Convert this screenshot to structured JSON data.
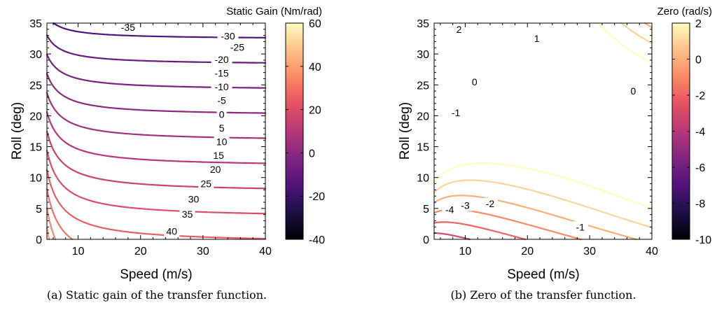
{
  "chart_data": [
    {
      "type": "contour",
      "id": "a",
      "caption": "(a) Static gain of the transfer function.",
      "xlabel": "Speed (m/s)",
      "ylabel": "Roll (deg)",
      "xlim": [
        5,
        40
      ],
      "ylim": [
        0,
        35
      ],
      "xticks": [
        "10",
        "20",
        "30",
        "40"
      ],
      "yticks": [
        "0",
        "5",
        "10",
        "15",
        "20",
        "25",
        "30",
        "35"
      ],
      "colorbar": {
        "label": "Static Gain (Nm/rad)",
        "min": -40,
        "max": 60,
        "ticks": [
          "-40",
          "-20",
          "0",
          "20",
          "40",
          "60"
        ]
      },
      "levels": [
        -35,
        -30,
        -25,
        -20,
        -15,
        -10,
        -5,
        0,
        5,
        10,
        15,
        20,
        25,
        30,
        35,
        40,
        45,
        50,
        55
      ],
      "labeled_levels": [
        "-35",
        "-30",
        "-25",
        "-20",
        "-15",
        "-10",
        "-5",
        "0",
        "5",
        "10",
        "15",
        "20",
        "25",
        "30",
        "35",
        "40"
      ],
      "grid": false
    },
    {
      "type": "contour",
      "id": "b",
      "caption": "(b) Zero of the transfer function.",
      "xlabel": "Speed (m/s)",
      "ylabel": "Roll (deg)",
      "xlim": [
        5,
        40
      ],
      "ylim": [
        0,
        35
      ],
      "xticks": [
        "10",
        "20",
        "30",
        "40"
      ],
      "yticks": [
        "0",
        "5",
        "10",
        "15",
        "20",
        "25",
        "30",
        "35"
      ],
      "colorbar": {
        "label": "Zero (rad/s)",
        "min": -10,
        "max": 2,
        "ticks": [
          "-10",
          "-8",
          "-6",
          "-4",
          "-2",
          "0",
          "2"
        ]
      },
      "levels": [
        -10,
        -9,
        -8,
        -7,
        -6,
        -5,
        -4,
        -3,
        -2,
        -1,
        0,
        1,
        2
      ],
      "labeled_levels": [
        "2",
        "1",
        "0",
        "0",
        "-1",
        "-1",
        "-2",
        "-3",
        "-4"
      ],
      "grid": false
    }
  ]
}
